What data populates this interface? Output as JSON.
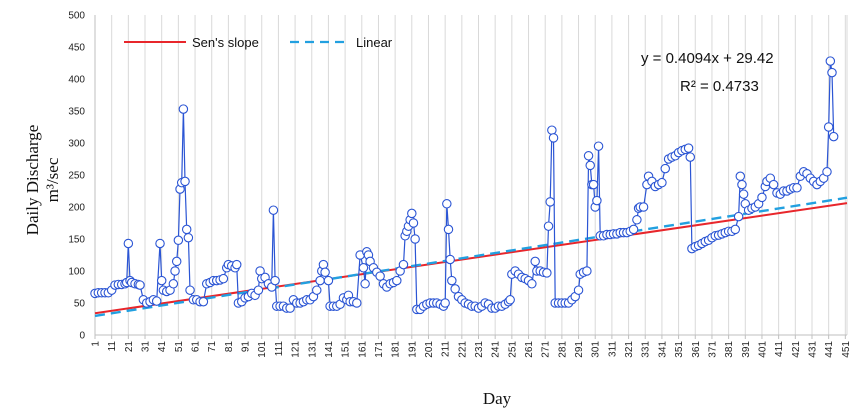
{
  "chart_data": {
    "type": "line",
    "xlabel": "Day",
    "ylabel_line1": "Daily Discharge",
    "ylabel_line2": "m³/sec",
    "ylim": [
      0,
      500
    ],
    "yticks": [
      0,
      50,
      100,
      150,
      200,
      250,
      300,
      350,
      400,
      450,
      500
    ],
    "xlim": [
      1,
      452
    ],
    "xticks": [
      1,
      11,
      21,
      31,
      41,
      51,
      61,
      71,
      81,
      91,
      101,
      111,
      121,
      131,
      141,
      151,
      161,
      171,
      181,
      191,
      201,
      211,
      221,
      231,
      241,
      251,
      261,
      271,
      281,
      291,
      301,
      311,
      321,
      331,
      341,
      351,
      361,
      371,
      381,
      391,
      401,
      411,
      421,
      431,
      441,
      451
    ],
    "grid": "vertical",
    "legend_position": "top-left",
    "series": [
      {
        "name": "",
        "color": "#2b55d4",
        "marker": "open-circle",
        "points": [
          [
            1,
            65
          ],
          [
            3,
            66
          ],
          [
            5,
            66
          ],
          [
            7,
            66
          ],
          [
            9,
            66
          ],
          [
            11,
            70
          ],
          [
            13,
            78
          ],
          [
            15,
            79
          ],
          [
            17,
            79
          ],
          [
            19,
            80
          ],
          [
            20,
            82
          ],
          [
            21,
            143
          ],
          [
            22,
            85
          ],
          [
            23,
            82
          ],
          [
            25,
            80
          ],
          [
            27,
            79
          ],
          [
            28,
            78
          ],
          [
            30,
            55
          ],
          [
            32,
            50
          ],
          [
            34,
            52
          ],
          [
            36,
            55
          ],
          [
            38,
            53
          ],
          [
            40,
            143
          ],
          [
            41,
            85
          ],
          [
            42,
            70
          ],
          [
            44,
            68
          ],
          [
            46,
            70
          ],
          [
            48,
            80
          ],
          [
            49,
            100
          ],
          [
            50,
            115
          ],
          [
            51,
            148
          ],
          [
            52,
            228
          ],
          [
            53,
            238
          ],
          [
            54,
            353
          ],
          [
            55,
            240
          ],
          [
            56,
            165
          ],
          [
            57,
            152
          ],
          [
            58,
            70
          ],
          [
            60,
            55
          ],
          [
            62,
            55
          ],
          [
            64,
            52
          ],
          [
            66,
            52
          ],
          [
            68,
            80
          ],
          [
            70,
            82
          ],
          [
            72,
            85
          ],
          [
            74,
            85
          ],
          [
            76,
            86
          ],
          [
            78,
            88
          ],
          [
            80,
            105
          ],
          [
            81,
            110
          ],
          [
            83,
            108
          ],
          [
            85,
            105
          ],
          [
            86,
            110
          ],
          [
            87,
            50
          ],
          [
            89,
            52
          ],
          [
            91,
            58
          ],
          [
            93,
            60
          ],
          [
            95,
            65
          ],
          [
            97,
            62
          ],
          [
            99,
            70
          ],
          [
            100,
            100
          ],
          [
            101,
            88
          ],
          [
            103,
            90
          ],
          [
            105,
            80
          ],
          [
            107,
            75
          ],
          [
            108,
            195
          ],
          [
            109,
            85
          ],
          [
            110,
            45
          ],
          [
            112,
            45
          ],
          [
            114,
            45
          ],
          [
            116,
            42
          ],
          [
            118,
            42
          ],
          [
            120,
            55
          ],
          [
            122,
            50
          ],
          [
            124,
            50
          ],
          [
            126,
            52
          ],
          [
            128,
            55
          ],
          [
            130,
            55
          ],
          [
            132,
            60
          ],
          [
            134,
            70
          ],
          [
            136,
            85
          ],
          [
            137,
            100
          ],
          [
            138,
            110
          ],
          [
            139,
            98
          ],
          [
            141,
            85
          ],
          [
            142,
            45
          ],
          [
            144,
            45
          ],
          [
            146,
            45
          ],
          [
            148,
            48
          ],
          [
            150,
            58
          ],
          [
            152,
            55
          ],
          [
            153,
            62
          ],
          [
            154,
            52
          ],
          [
            156,
            52
          ],
          [
            158,
            50
          ],
          [
            160,
            125
          ],
          [
            162,
            105
          ],
          [
            163,
            80
          ],
          [
            164,
            130
          ],
          [
            165,
            125
          ],
          [
            166,
            115
          ],
          [
            168,
            105
          ],
          [
            170,
            98
          ],
          [
            172,
            92
          ],
          [
            174,
            80
          ],
          [
            176,
            75
          ],
          [
            178,
            80
          ],
          [
            180,
            82
          ],
          [
            182,
            85
          ],
          [
            184,
            100
          ],
          [
            186,
            110
          ],
          [
            187,
            155
          ],
          [
            188,
            162
          ],
          [
            189,
            170
          ],
          [
            190,
            180
          ],
          [
            191,
            190
          ],
          [
            192,
            175
          ],
          [
            193,
            150
          ],
          [
            194,
            40
          ],
          [
            196,
            40
          ],
          [
            198,
            45
          ],
          [
            200,
            48
          ],
          [
            202,
            50
          ],
          [
            204,
            50
          ],
          [
            206,
            50
          ],
          [
            208,
            48
          ],
          [
            210,
            45
          ],
          [
            211,
            50
          ],
          [
            212,
            205
          ],
          [
            213,
            165
          ],
          [
            214,
            118
          ],
          [
            215,
            85
          ],
          [
            217,
            72
          ],
          [
            219,
            60
          ],
          [
            221,
            55
          ],
          [
            223,
            50
          ],
          [
            225,
            48
          ],
          [
            227,
            45
          ],
          [
            229,
            45
          ],
          [
            231,
            42
          ],
          [
            233,
            45
          ],
          [
            235,
            50
          ],
          [
            237,
            48
          ],
          [
            239,
            42
          ],
          [
            241,
            42
          ],
          [
            243,
            45
          ],
          [
            245,
            45
          ],
          [
            247,
            48
          ],
          [
            249,
            52
          ],
          [
            250,
            55
          ],
          [
            251,
            95
          ],
          [
            253,
            100
          ],
          [
            255,
            95
          ],
          [
            257,
            90
          ],
          [
            259,
            88
          ],
          [
            261,
            85
          ],
          [
            263,
            80
          ],
          [
            265,
            115
          ],
          [
            266,
            100
          ],
          [
            268,
            100
          ],
          [
            270,
            98
          ],
          [
            272,
            97
          ],
          [
            273,
            170
          ],
          [
            274,
            208
          ],
          [
            275,
            320
          ],
          [
            276,
            308
          ],
          [
            277,
            50
          ],
          [
            279,
            50
          ],
          [
            281,
            50
          ],
          [
            283,
            50
          ],
          [
            285,
            50
          ],
          [
            287,
            55
          ],
          [
            289,
            60
          ],
          [
            291,
            70
          ],
          [
            292,
            95
          ],
          [
            294,
            98
          ],
          [
            296,
            100
          ],
          [
            297,
            280
          ],
          [
            298,
            265
          ],
          [
            299,
            235
          ],
          [
            300,
            235
          ],
          [
            301,
            200
          ],
          [
            302,
            210
          ],
          [
            303,
            295
          ],
          [
            304,
            155
          ],
          [
            306,
            155
          ],
          [
            308,
            157
          ],
          [
            310,
            157
          ],
          [
            312,
            158
          ],
          [
            314,
            158
          ],
          [
            316,
            160
          ],
          [
            318,
            160
          ],
          [
            320,
            160
          ],
          [
            322,
            162
          ],
          [
            324,
            165
          ],
          [
            326,
            180
          ],
          [
            327,
            198
          ],
          [
            328,
            200
          ],
          [
            330,
            200
          ],
          [
            332,
            235
          ],
          [
            333,
            248
          ],
          [
            335,
            240
          ],
          [
            337,
            232
          ],
          [
            339,
            235
          ],
          [
            341,
            238
          ],
          [
            343,
            260
          ],
          [
            345,
            275
          ],
          [
            347,
            278
          ],
          [
            349,
            280
          ],
          [
            351,
            285
          ],
          [
            353,
            288
          ],
          [
            355,
            290
          ],
          [
            357,
            292
          ],
          [
            358,
            278
          ],
          [
            359,
            135
          ],
          [
            361,
            138
          ],
          [
            363,
            140
          ],
          [
            365,
            143
          ],
          [
            367,
            146
          ],
          [
            369,
            148
          ],
          [
            371,
            152
          ],
          [
            373,
            155
          ],
          [
            375,
            156
          ],
          [
            377,
            158
          ],
          [
            379,
            160
          ],
          [
            381,
            162
          ],
          [
            383,
            162
          ],
          [
            385,
            165
          ],
          [
            387,
            185
          ],
          [
            388,
            248
          ],
          [
            389,
            235
          ],
          [
            390,
            220
          ],
          [
            391,
            205
          ],
          [
            393,
            195
          ],
          [
            395,
            198
          ],
          [
            397,
            200
          ],
          [
            399,
            205
          ],
          [
            401,
            215
          ],
          [
            403,
            232
          ],
          [
            404,
            240
          ],
          [
            406,
            245
          ],
          [
            408,
            235
          ],
          [
            410,
            222
          ],
          [
            412,
            220
          ],
          [
            414,
            225
          ],
          [
            416,
            225
          ],
          [
            418,
            228
          ],
          [
            420,
            230
          ],
          [
            422,
            230
          ],
          [
            424,
            248
          ],
          [
            426,
            255
          ],
          [
            428,
            252
          ],
          [
            430,
            245
          ],
          [
            432,
            240
          ],
          [
            434,
            235
          ],
          [
            436,
            240
          ],
          [
            438,
            245
          ],
          [
            440,
            255
          ],
          [
            441,
            325
          ],
          [
            442,
            428
          ],
          [
            443,
            410
          ],
          [
            444,
            310
          ]
        ]
      },
      {
        "name": "Sen's slope",
        "color": "#e8262b",
        "style": "solid",
        "start": [
          1,
          34
        ],
        "end": [
          452,
          206
        ]
      },
      {
        "name": "Linear",
        "color": "#22a0e0",
        "style": "dashed",
        "slope": 0.4094,
        "intercept": 29.42
      }
    ],
    "annotations": {
      "equation": "y = 0.4094x + 29.42",
      "r_squared": "R² = 0.4733"
    }
  }
}
